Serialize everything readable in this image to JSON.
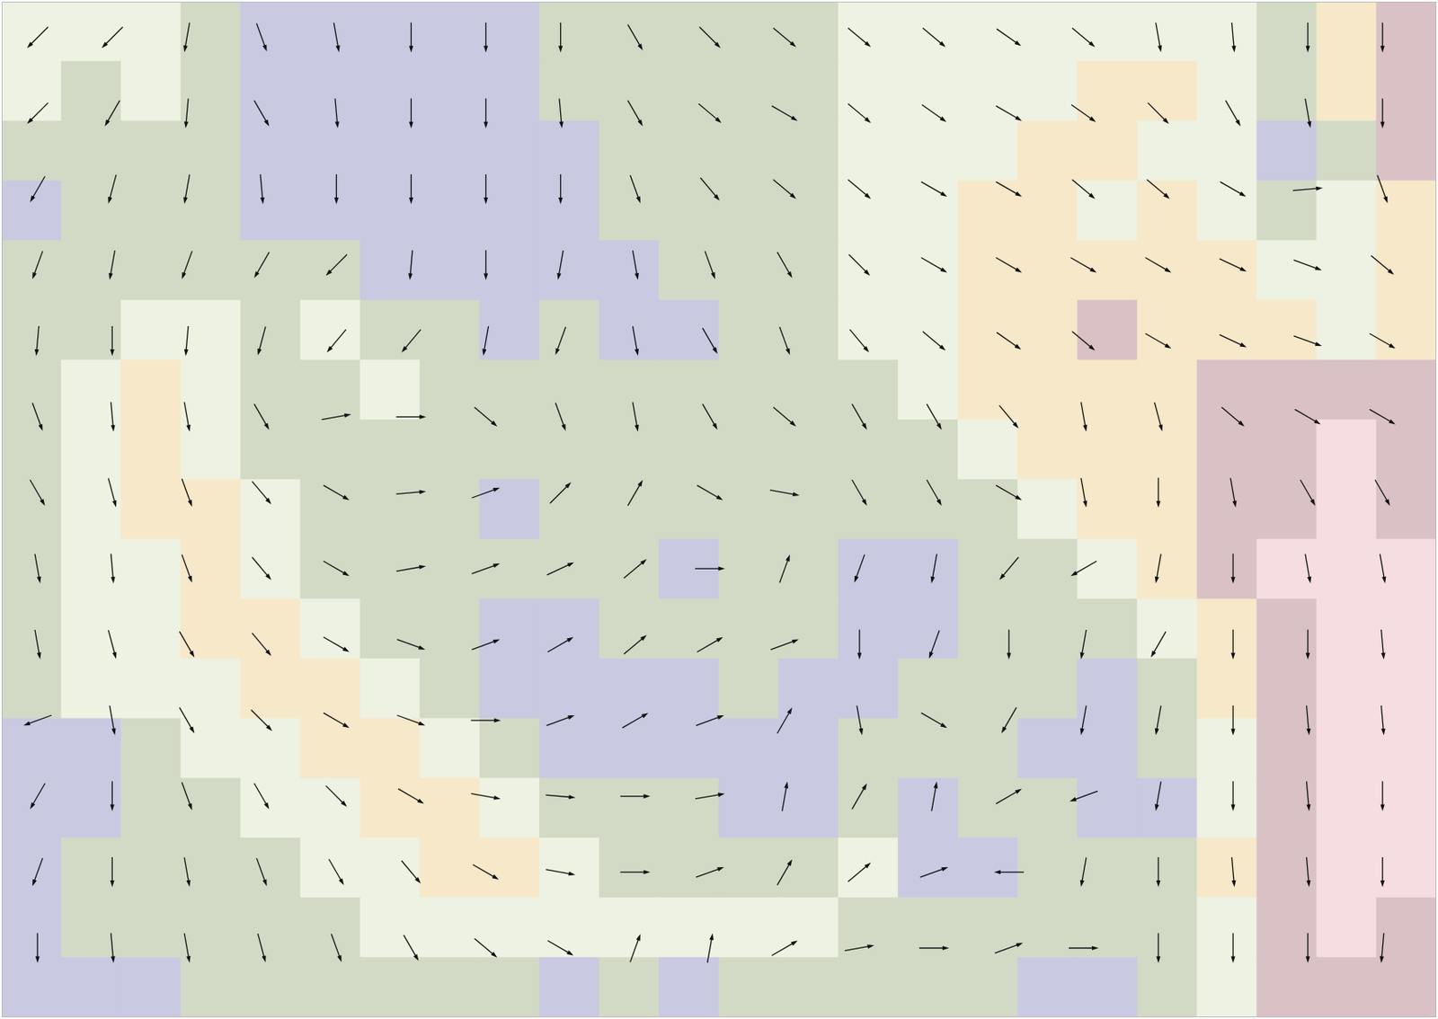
{
  "chart_data": {
    "type": "vector_field",
    "xlim": [
      0,
      24
    ],
    "ylim": [
      0,
      17
    ],
    "tick_labels": false,
    "grid": false,
    "field": {
      "colors": [
        "#c9c9e2",
        "#d2dac6",
        "#eef2e2",
        "#f6e8c9",
        "#d9c1c6",
        "#f6dde2"
      ],
      "levels": [
        [
          2,
          2,
          2,
          1,
          0,
          0,
          0,
          0,
          0,
          1,
          1,
          1,
          1,
          1,
          2,
          2,
          2,
          2,
          2,
          2,
          2,
          1,
          3,
          4
        ],
        [
          2,
          1,
          2,
          1,
          0,
          0,
          0,
          0,
          0,
          1,
          1,
          1,
          1,
          1,
          2,
          2,
          2,
          2,
          3,
          3,
          2,
          1,
          3,
          4
        ],
        [
          1,
          1,
          1,
          1,
          0,
          0,
          0,
          0,
          0,
          0,
          1,
          1,
          1,
          1,
          2,
          2,
          2,
          3,
          3,
          2,
          2,
          0,
          1,
          4
        ],
        [
          0,
          1,
          1,
          1,
          0,
          0,
          0,
          0,
          0,
          0,
          1,
          1,
          1,
          1,
          2,
          2,
          3,
          3,
          2,
          3,
          2,
          1,
          2,
          3
        ],
        [
          1,
          1,
          1,
          1,
          1,
          1,
          0,
          0,
          0,
          0,
          0,
          1,
          1,
          1,
          2,
          2,
          3,
          3,
          3,
          3,
          3,
          2,
          2,
          3
        ],
        [
          1,
          1,
          2,
          2,
          1,
          2,
          1,
          1,
          0,
          1,
          0,
          0,
          1,
          1,
          2,
          2,
          3,
          3,
          4,
          3,
          3,
          3,
          2,
          3
        ],
        [
          1,
          2,
          3,
          2,
          1,
          1,
          2,
          1,
          1,
          1,
          1,
          1,
          1,
          1,
          1,
          2,
          3,
          3,
          3,
          3,
          4,
          4,
          4,
          4
        ],
        [
          1,
          2,
          3,
          2,
          1,
          1,
          1,
          1,
          1,
          1,
          1,
          1,
          1,
          1,
          1,
          1,
          2,
          3,
          3,
          3,
          4,
          4,
          5,
          4
        ],
        [
          1,
          2,
          3,
          3,
          2,
          1,
          1,
          1,
          0,
          1,
          1,
          1,
          1,
          1,
          1,
          1,
          1,
          2,
          3,
          3,
          4,
          4,
          5,
          4
        ],
        [
          1,
          2,
          2,
          3,
          2,
          1,
          1,
          1,
          1,
          1,
          1,
          0,
          1,
          1,
          0,
          0,
          1,
          1,
          2,
          3,
          4,
          5,
          5,
          5
        ],
        [
          1,
          2,
          2,
          3,
          3,
          2,
          1,
          1,
          0,
          0,
          1,
          1,
          1,
          1,
          0,
          0,
          1,
          1,
          1,
          2,
          3,
          4,
          5,
          5
        ],
        [
          1,
          2,
          2,
          2,
          3,
          3,
          2,
          1,
          0,
          0,
          0,
          0,
          1,
          0,
          0,
          1,
          1,
          1,
          0,
          1,
          3,
          4,
          5,
          5
        ],
        [
          0,
          0,
          1,
          2,
          2,
          3,
          3,
          2,
          1,
          0,
          0,
          0,
          0,
          0,
          1,
          1,
          1,
          0,
          0,
          1,
          2,
          4,
          5,
          5
        ],
        [
          0,
          0,
          1,
          1,
          2,
          2,
          3,
          3,
          2,
          1,
          1,
          1,
          0,
          0,
          1,
          0,
          1,
          1,
          0,
          0,
          2,
          4,
          5,
          5
        ],
        [
          0,
          1,
          1,
          1,
          1,
          2,
          2,
          3,
          3,
          2,
          1,
          1,
          1,
          1,
          2,
          0,
          0,
          1,
          1,
          1,
          3,
          4,
          5,
          5
        ],
        [
          0,
          1,
          1,
          1,
          1,
          1,
          2,
          2,
          2,
          2,
          2,
          2,
          2,
          2,
          1,
          1,
          1,
          1,
          1,
          1,
          2,
          4,
          5,
          4
        ],
        [
          0,
          0,
          0,
          1,
          1,
          1,
          1,
          1,
          1,
          0,
          1,
          0,
          1,
          1,
          1,
          1,
          1,
          0,
          0,
          1,
          2,
          4,
          4,
          4
        ]
      ]
    },
    "arrows": {
      "color": "#111111",
      "x": [
        0.6,
        1.85,
        3.1,
        4.35,
        5.6,
        6.85,
        8.1,
        9.35,
        10.6,
        11.85,
        13.1,
        14.35,
        15.6,
        16.85,
        18.1,
        19.35,
        20.6,
        21.85,
        23.1
      ],
      "y": [
        0.6,
        1.87,
        3.14,
        4.41,
        5.68,
        6.95,
        8.22,
        9.49,
        10.76,
        12.03,
        13.3,
        14.57,
        15.84
      ],
      "direction": [
        [
          225,
          225,
          260,
          290,
          280,
          270,
          270,
          270,
          300,
          315,
          320,
          320,
          320,
          325,
          320,
          280,
          275,
          270,
          270
        ],
        [
          225,
          240,
          265,
          300,
          275,
          270,
          270,
          275,
          300,
          320,
          330,
          320,
          325,
          330,
          325,
          315,
          300,
          280,
          270
        ],
        [
          240,
          255,
          260,
          275,
          270,
          270,
          270,
          270,
          290,
          310,
          320,
          320,
          330,
          330,
          320,
          320,
          330,
          5,
          290
        ],
        [
          250,
          260,
          250,
          240,
          225,
          265,
          270,
          260,
          280,
          290,
          300,
          315,
          330,
          330,
          330,
          330,
          335,
          340,
          320
        ],
        [
          265,
          270,
          265,
          255,
          230,
          230,
          260,
          250,
          280,
          300,
          290,
          310,
          320,
          325,
          320,
          330,
          335,
          340,
          330
        ],
        [
          290,
          275,
          280,
          300,
          10,
          0,
          320,
          290,
          280,
          300,
          320,
          300,
          300,
          310,
          280,
          285,
          320,
          330,
          330
        ],
        [
          300,
          285,
          290,
          310,
          330,
          5,
          20,
          45,
          60,
          330,
          350,
          300,
          300,
          330,
          280,
          270,
          280,
          300,
          300
        ],
        [
          280,
          275,
          290,
          310,
          330,
          10,
          20,
          25,
          40,
          0,
          70,
          250,
          260,
          230,
          210,
          260,
          270,
          280,
          280
        ],
        [
          280,
          285,
          300,
          310,
          330,
          340,
          20,
          30,
          40,
          30,
          20,
          270,
          250,
          270,
          260,
          240,
          270,
          270,
          275
        ],
        [
          200,
          280,
          300,
          315,
          330,
          340,
          0,
          20,
          30,
          20,
          60,
          280,
          330,
          240,
          260,
          260,
          270,
          275,
          275
        ],
        [
          240,
          270,
          290,
          300,
          315,
          330,
          350,
          355,
          0,
          10,
          80,
          60,
          80,
          30,
          200,
          260,
          270,
          275,
          270
        ],
        [
          250,
          270,
          280,
          290,
          300,
          310,
          330,
          350,
          0,
          20,
          60,
          40,
          20,
          180,
          260,
          270,
          275,
          275,
          270
        ],
        [
          270,
          275,
          280,
          285,
          290,
          300,
          320,
          330,
          70,
          80,
          30,
          10,
          0,
          20,
          0,
          270,
          270,
          270,
          265
        ]
      ]
    }
  }
}
